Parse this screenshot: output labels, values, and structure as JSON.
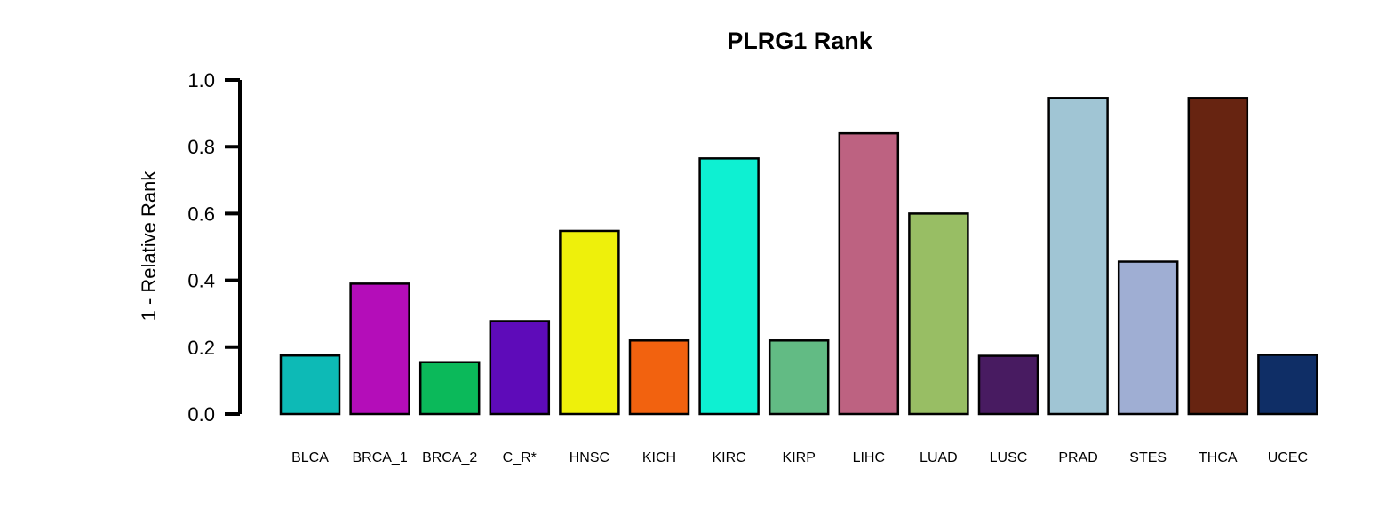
{
  "chart_data": {
    "type": "bar",
    "title": "PLRG1 Rank",
    "xlabel": "",
    "ylabel": "1 - Relative Rank",
    "ylim": [
      0,
      1.0
    ],
    "y_ticks": [
      "0.0",
      "0.2",
      "0.4",
      "0.6",
      "0.8",
      "1.0"
    ],
    "y_tick_values": [
      0,
      0.2,
      0.4,
      0.6,
      0.8,
      1.0
    ],
    "grid": false,
    "legend": "none",
    "categories": [
      "BLCA",
      "BRCA_1",
      "BRCA_2",
      "C_R*",
      "HNSC",
      "KICH",
      "KIRC",
      "KIRP",
      "LIHC",
      "LUAD",
      "LUSC",
      "PRAD",
      "STES",
      "THCA",
      "UCEC"
    ],
    "values": [
      0.175,
      0.39,
      0.155,
      0.278,
      0.548,
      0.22,
      0.765,
      0.22,
      0.84,
      0.6,
      0.174,
      0.946,
      0.456,
      0.946,
      0.177
    ],
    "colors": [
      "#0dbab6",
      "#b40db9",
      "#0bb95a",
      "#5e0bb9",
      "#eef00b",
      "#f2620f",
      "#0ef0d2",
      "#62bb84",
      "#bd6281",
      "#98be64",
      "#481b61",
      "#a0c5d4",
      "#9faed3",
      "#672411",
      "#0f2e66"
    ]
  }
}
